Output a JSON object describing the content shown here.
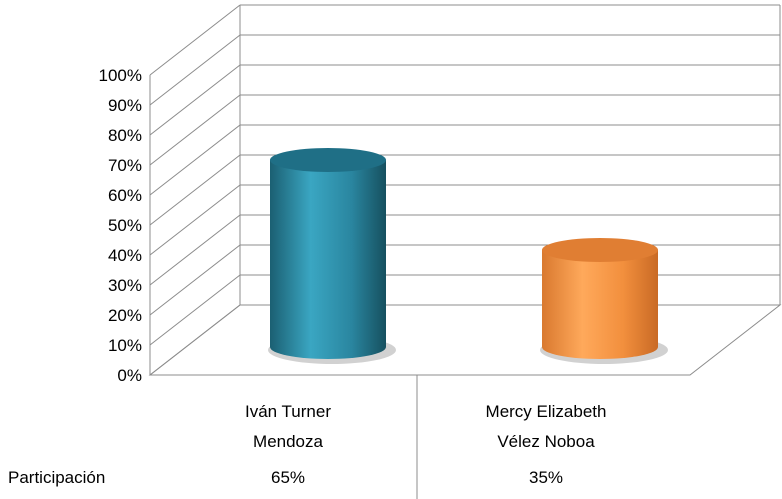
{
  "chart_data": {
    "type": "bar",
    "style": "3d-cylinder",
    "categories": [
      [
        "Iván Turner",
        "Mendoza"
      ],
      [
        "Mercy Elizabeth",
        "Vélez Noboa"
      ]
    ],
    "series": [
      {
        "name": "Participación",
        "values": [
          65,
          35
        ]
      }
    ],
    "table_row": {
      "label": "Participación",
      "values": [
        "65%",
        "35%"
      ]
    },
    "yticks": [
      "0%",
      "10%",
      "20%",
      "30%",
      "40%",
      "50%",
      "60%",
      "70%",
      "80%",
      "90%",
      "100%"
    ],
    "ylim": [
      0,
      100
    ],
    "grid": true,
    "colors": {
      "bar_1": "#2F8FA9",
      "bar_2": "#F79646",
      "grid": "#8c8c8c"
    }
  }
}
